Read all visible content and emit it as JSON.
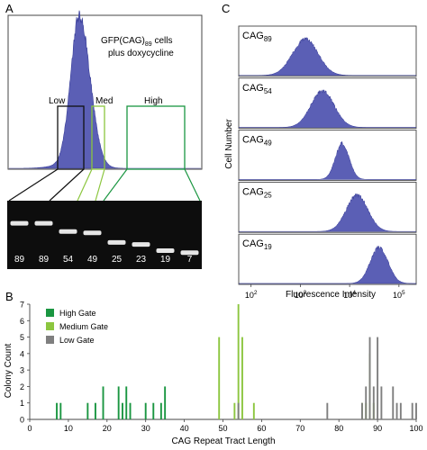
{
  "panel_labels": {
    "a": "A",
    "b": "B",
    "c": "C"
  },
  "panel_a": {
    "annotation": {
      "line1_prefix": "GFP(CAG)",
      "line1_sub": "89",
      "line1_suffix": " cells",
      "line2": "plus doxycycline"
    },
    "gates": [
      {
        "label": "Low",
        "color": "#111111"
      },
      {
        "label": "Med",
        "color": "#8cc63f"
      },
      {
        "label": "High",
        "color": "#1a9641"
      }
    ],
    "histogram_color": "#5b5fb5"
  },
  "gel": {
    "lane_labels": [
      "89",
      "89",
      "54",
      "49",
      "25",
      "23",
      "19",
      "7"
    ],
    "band_rel_height": [
      0.33,
      0.33,
      0.45,
      0.47,
      0.61,
      0.64,
      0.73,
      0.76
    ]
  },
  "panel_c": {
    "ylabel": "Cell Number",
    "xlabel": "Fluorescence Intensity",
    "ticks": [
      {
        "base": "10",
        "exp": "2"
      },
      {
        "base": "10",
        "exp": "3"
      },
      {
        "base": "10",
        "exp": "4"
      },
      {
        "base": "10",
        "exp": "5"
      }
    ],
    "histograms": [
      {
        "prefix": "CAG",
        "sub": "89",
        "peak_log": 3.1,
        "width": 0.26
      },
      {
        "prefix": "CAG",
        "sub": "54",
        "peak_log": 3.45,
        "width": 0.24
      },
      {
        "prefix": "CAG",
        "sub": "49",
        "peak_log": 3.85,
        "width": 0.14
      },
      {
        "prefix": "CAG",
        "sub": "25",
        "peak_log": 4.15,
        "width": 0.22
      },
      {
        "prefix": "CAG",
        "sub": "19",
        "peak_log": 4.6,
        "width": 0.18
      }
    ],
    "color": "#5b5fb5"
  },
  "chart_data": {
    "type": "bar",
    "xlabel": "CAG Repeat Tract Length",
    "ylabel": "Colony Count",
    "xlim": [
      0,
      100
    ],
    "ylim": [
      0,
      7
    ],
    "xticks": [
      0,
      10,
      20,
      30,
      40,
      50,
      60,
      70,
      80,
      90,
      100
    ],
    "yticks": [
      0,
      1,
      2,
      3,
      4,
      5,
      6,
      7
    ],
    "legend_position": "top-left",
    "series": [
      {
        "name": "High Gate",
        "color": "#1a9641",
        "points": [
          [
            7,
            1
          ],
          [
            8,
            1
          ],
          [
            15,
            1
          ],
          [
            17,
            1
          ],
          [
            19,
            2
          ],
          [
            23,
            2
          ],
          [
            24,
            1
          ],
          [
            25,
            2
          ],
          [
            26,
            1
          ],
          [
            30,
            1
          ],
          [
            32,
            1
          ],
          [
            34,
            1
          ],
          [
            35,
            2
          ]
        ]
      },
      {
        "name": "Medium Gate",
        "color": "#8cc63f",
        "points": [
          [
            49,
            5
          ],
          [
            53,
            1
          ],
          [
            54,
            7
          ],
          [
            55,
            5
          ],
          [
            58,
            1
          ],
          [
            86,
            1
          ],
          [
            87,
            1
          ],
          [
            88,
            4
          ],
          [
            89,
            1
          ]
        ]
      },
      {
        "name": "Low Gate",
        "color": "#7f7f7f",
        "points": [
          [
            54,
            1
          ],
          [
            77,
            1
          ],
          [
            86,
            1
          ],
          [
            87,
            2
          ],
          [
            88,
            5
          ],
          [
            89,
            2
          ],
          [
            90,
            5
          ],
          [
            91,
            2
          ],
          [
            94,
            2
          ],
          [
            95,
            1
          ],
          [
            96,
            1
          ],
          [
            99,
            1
          ],
          [
            100,
            1
          ]
        ]
      }
    ]
  }
}
